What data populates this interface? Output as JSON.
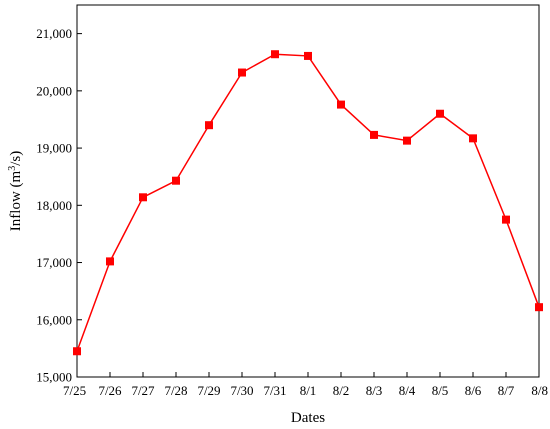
{
  "chart_data": {
    "type": "line",
    "title": "",
    "xlabel": "Dates",
    "ylabel_main": "Inflow (m",
    "ylabel_sup": "3",
    "ylabel_tail": "/s)",
    "categories": [
      "7/25",
      "7/26",
      "7/27",
      "7/28",
      "7/29",
      "7/30",
      "7/31",
      "8/1",
      "8/2",
      "8/3",
      "8/4",
      "8/5",
      "8/6",
      "8/7",
      "8/8"
    ],
    "series": [
      {
        "values": [
          15450,
          17020,
          18140,
          18430,
          19400,
          20320,
          20640,
          20610,
          19760,
          19230,
          19130,
          19600,
          19170,
          17750,
          16220
        ],
        "color": "#ff0000",
        "marker": "square"
      }
    ],
    "ylim": [
      15000,
      21500
    ],
    "yticks": [
      15000,
      16000,
      17000,
      18000,
      19000,
      20000,
      21000
    ],
    "ytick_labels": [
      "15,000",
      "16,000",
      "17,000",
      "18,000",
      "19,000",
      "20,000",
      "21,000"
    ],
    "grid": false,
    "legend": "none"
  }
}
